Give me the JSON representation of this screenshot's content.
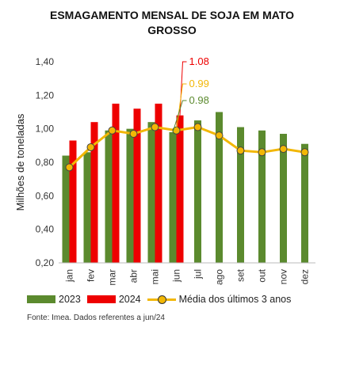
{
  "title": "ESMAGAMENTO MENSAL DE SOJA EM MATO GROSSO",
  "source_note": "Fonte: Imea. Dados referentes a jun/24",
  "colors": {
    "s2023": "#5b8a2e",
    "s2024": "#ee0000",
    "avg": "#f2b705",
    "marker_edge": "#444444"
  },
  "chart_data": {
    "type": "bar",
    "title": "ESMAGAMENTO MENSAL DE SOJA EM MATO GROSSO",
    "xlabel": "",
    "ylabel": "Milhões de toneladas",
    "ylim": [
      0.2,
      1.4
    ],
    "yticks": [
      "0,20",
      "0,40",
      "0,60",
      "0,80",
      "1,00",
      "1,20",
      "1,40"
    ],
    "grid": false,
    "legend_position": "bottom",
    "categories": [
      "jan",
      "fev",
      "mar",
      "abr",
      "mai",
      "jun",
      "jul",
      "ago",
      "set",
      "out",
      "nov",
      "dez"
    ],
    "series": [
      {
        "name": "2023",
        "type": "bar",
        "values": [
          0.84,
          0.86,
          0.99,
          1.0,
          1.04,
          0.98,
          1.05,
          1.1,
          1.01,
          0.99,
          0.97,
          0.91
        ]
      },
      {
        "name": "2024",
        "type": "bar",
        "values": [
          0.93,
          1.04,
          1.15,
          1.12,
          1.15,
          1.08,
          null,
          null,
          null,
          null,
          null,
          null
        ]
      },
      {
        "name": "Média dos últimos 3 anos",
        "type": "line",
        "values": [
          0.77,
          0.89,
          0.99,
          0.97,
          1.01,
          0.99,
          1.01,
          0.96,
          0.87,
          0.86,
          0.88,
          0.86
        ]
      }
    ],
    "annotations": [
      {
        "text": "1.08",
        "series": "2024",
        "category": "jun"
      },
      {
        "text": "0.99",
        "series": "Média dos últimos 3 anos",
        "category": "jun"
      },
      {
        "text": "0.98",
        "series": "2023",
        "category": "jun"
      }
    ]
  }
}
